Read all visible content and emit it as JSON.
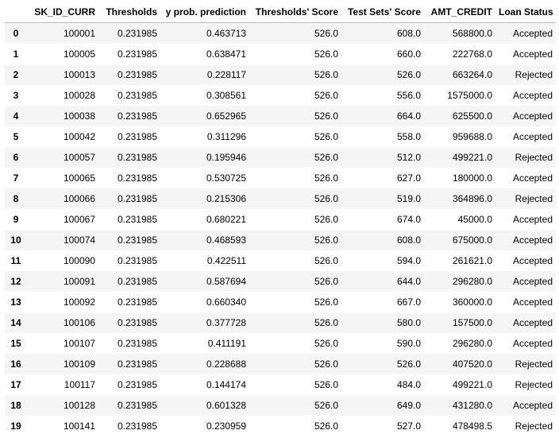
{
  "table": {
    "columns": [
      "",
      "SK_ID_CURR",
      "Thresholds",
      "y prob. prediction",
      "Thresholds' Score",
      "Test Sets' Score",
      "AMT_CREDIT",
      "Loan Status"
    ],
    "rows": [
      [
        "0",
        "100001",
        "0.231985",
        "0.463713",
        "526.0",
        "608.0",
        "568800.0",
        "Accepted"
      ],
      [
        "1",
        "100005",
        "0.231985",
        "0.638471",
        "526.0",
        "660.0",
        "222768.0",
        "Accepted"
      ],
      [
        "2",
        "100013",
        "0.231985",
        "0.228117",
        "526.0",
        "526.0",
        "663264.0",
        "Rejected"
      ],
      [
        "3",
        "100028",
        "0.231985",
        "0.308561",
        "526.0",
        "556.0",
        "1575000.0",
        "Accepted"
      ],
      [
        "4",
        "100038",
        "0.231985",
        "0.652965",
        "526.0",
        "664.0",
        "625500.0",
        "Accepted"
      ],
      [
        "5",
        "100042",
        "0.231985",
        "0.311296",
        "526.0",
        "558.0",
        "959688.0",
        "Accepted"
      ],
      [
        "6",
        "100057",
        "0.231985",
        "0.195946",
        "526.0",
        "512.0",
        "499221.0",
        "Rejected"
      ],
      [
        "7",
        "100065",
        "0.231985",
        "0.530725",
        "526.0",
        "627.0",
        "180000.0",
        "Accepted"
      ],
      [
        "8",
        "100066",
        "0.231985",
        "0.215306",
        "526.0",
        "519.0",
        "364896.0",
        "Rejected"
      ],
      [
        "9",
        "100067",
        "0.231985",
        "0.680221",
        "526.0",
        "674.0",
        "45000.0",
        "Accepted"
      ],
      [
        "10",
        "100074",
        "0.231985",
        "0.468593",
        "526.0",
        "608.0",
        "675000.0",
        "Accepted"
      ],
      [
        "11",
        "100090",
        "0.231985",
        "0.422511",
        "526.0",
        "594.0",
        "261621.0",
        "Accepted"
      ],
      [
        "12",
        "100091",
        "0.231985",
        "0.587694",
        "526.0",
        "644.0",
        "296280.0",
        "Accepted"
      ],
      [
        "13",
        "100092",
        "0.231985",
        "0.660340",
        "526.0",
        "667.0",
        "360000.0",
        "Accepted"
      ],
      [
        "14",
        "100106",
        "0.231985",
        "0.377728",
        "526.0",
        "580.0",
        "157500.0",
        "Accepted"
      ],
      [
        "15",
        "100107",
        "0.231985",
        "0.411191",
        "526.0",
        "590.0",
        "296280.0",
        "Accepted"
      ],
      [
        "16",
        "100109",
        "0.231985",
        "0.228688",
        "526.0",
        "526.0",
        "407520.0",
        "Rejected"
      ],
      [
        "17",
        "100117",
        "0.231985",
        "0.144174",
        "526.0",
        "484.0",
        "499221.0",
        "Rejected"
      ],
      [
        "18",
        "100128",
        "0.231985",
        "0.601328",
        "526.0",
        "649.0",
        "431280.0",
        "Accepted"
      ],
      [
        "19",
        "100141",
        "0.231985",
        "0.230959",
        "526.0",
        "527.0",
        "478498.5",
        "Rejected"
      ]
    ]
  }
}
